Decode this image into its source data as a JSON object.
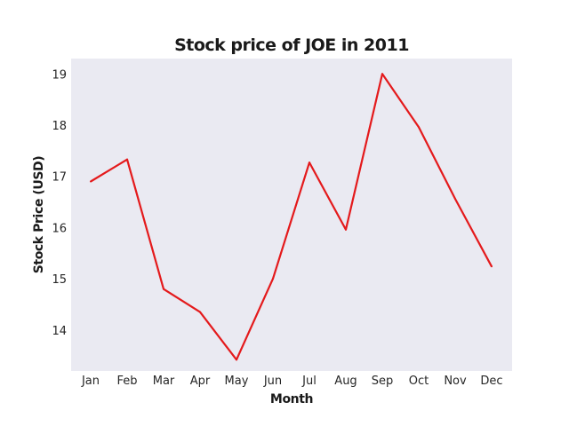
{
  "chart_data": {
    "type": "line",
    "title": "Stock price of JOE in 2011",
    "xlabel": "Month",
    "ylabel": "Stock Price (USD)",
    "categories": [
      "Jan",
      "Feb",
      "Mar",
      "Apr",
      "May",
      "Jun",
      "Jul",
      "Aug",
      "Sep",
      "Oct",
      "Nov",
      "Dec"
    ],
    "series": [
      {
        "name": "",
        "color": "#e41a1c",
        "values": [
          16.9,
          17.33,
          14.8,
          14.35,
          13.42,
          15.0,
          17.27,
          15.96,
          19.0,
          17.96,
          16.56,
          15.24
        ]
      }
    ],
    "yticks": [
      14,
      15,
      16,
      17,
      18,
      19
    ],
    "ylim": [
      13.2,
      19.3
    ],
    "grid": false,
    "legend": "none",
    "background": "#eaeaf2"
  }
}
